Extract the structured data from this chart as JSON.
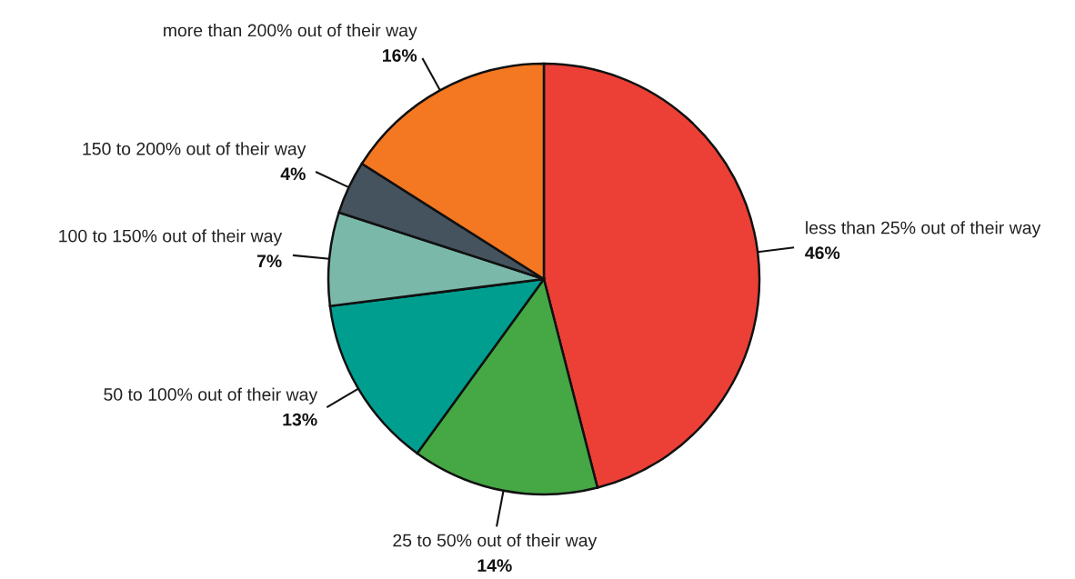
{
  "chart_data": {
    "type": "pie",
    "categories": [
      "less than 25% out of their way",
      "25 to 50% out of their way",
      "50 to 100% out of their way",
      "100 to 150% out of their way",
      "150 to 200% out of their way",
      "more than 200% out of their way"
    ],
    "values": [
      46,
      14,
      13,
      7,
      4,
      16
    ],
    "value_labels": [
      "46%",
      "14%",
      "13%",
      "7%",
      "4%",
      "16%"
    ],
    "colors": [
      "#ec4036",
      "#45a845",
      "#009e8f",
      "#7ab8aa",
      "#45535e",
      "#f47721"
    ],
    "legend": false
  }
}
